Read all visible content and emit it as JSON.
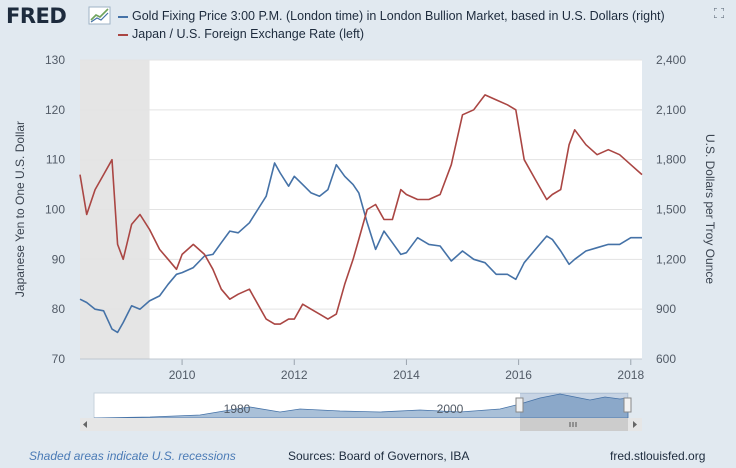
{
  "header": {
    "logo_text": "FRED",
    "logo_icon": "chart-trend-icon",
    "expand_icon": "expand-icon"
  },
  "colors": {
    "background": "#e1e9f0",
    "plot_background": "#ffffff",
    "recession_shade": "#e5e5e5",
    "gold_series": "#4572a7",
    "yen_series": "#aa4643",
    "text": "#1d2b3d",
    "link": "#4b7bb6"
  },
  "chart_data": {
    "type": "line",
    "x_axis": {
      "ticks": [
        2010,
        2012,
        2014,
        2016,
        2018
      ],
      "range": [
        2008.18,
        2018.2
      ]
    },
    "left_axis": {
      "label": "Japanese Yen to One U.S. Dollar",
      "range": [
        70,
        130
      ],
      "ticks": [
        70,
        80,
        90,
        100,
        110,
        120,
        130
      ]
    },
    "right_axis": {
      "label": "U.S. Dollars per Troy Ounce",
      "range": [
        600,
        2400
      ],
      "ticks": [
        "600",
        "900",
        "1,200",
        "1,500",
        "1,800",
        "2,100",
        "2,400"
      ]
    },
    "recession": [
      2008.18,
      2009.42
    ],
    "grid": "horizontal",
    "series": [
      {
        "name": "Gold Fixing Price 3:00 P.M. (London time) in London Bullion Market, based in U.S. Dollars (right)",
        "axis": "right",
        "x": [
          2008.18,
          2008.3,
          2008.45,
          2008.6,
          2008.75,
          2008.85,
          2008.95,
          2009.1,
          2009.25,
          2009.42,
          2009.6,
          2009.75,
          2009.9,
          2010.0,
          2010.2,
          2010.4,
          2010.55,
          2010.7,
          2010.85,
          2011.0,
          2011.2,
          2011.35,
          2011.5,
          2011.65,
          2011.75,
          2011.9,
          2012.0,
          2012.15,
          2012.3,
          2012.45,
          2012.6,
          2012.75,
          2012.9,
          2013.05,
          2013.15,
          2013.3,
          2013.45,
          2013.6,
          2013.75,
          2013.9,
          2014.0,
          2014.2,
          2014.4,
          2014.6,
          2014.8,
          2015.0,
          2015.2,
          2015.4,
          2015.6,
          2015.8,
          2015.95,
          2016.1,
          2016.3,
          2016.5,
          2016.6,
          2016.75,
          2016.9,
          2017.0,
          2017.2,
          2017.4,
          2017.6,
          2017.8,
          2018.0,
          2018.2
        ],
        "values": [
          960,
          940,
          900,
          890,
          780,
          760,
          820,
          920,
          900,
          950,
          980,
          1050,
          1110,
          1120,
          1150,
          1220,
          1230,
          1300,
          1370,
          1360,
          1420,
          1500,
          1580,
          1780,
          1720,
          1640,
          1700,
          1650,
          1600,
          1580,
          1620,
          1770,
          1700,
          1650,
          1600,
          1420,
          1260,
          1370,
          1300,
          1230,
          1240,
          1330,
          1290,
          1280,
          1190,
          1250,
          1200,
          1180,
          1110,
          1110,
          1080,
          1180,
          1260,
          1340,
          1320,
          1250,
          1170,
          1200,
          1250,
          1270,
          1290,
          1290,
          1330,
          1330
        ]
      },
      {
        "name": "Japan / U.S. Foreign Exchange Rate (left)",
        "axis": "left",
        "x": [
          2008.18,
          2008.3,
          2008.45,
          2008.6,
          2008.75,
          2008.85,
          2008.95,
          2009.1,
          2009.25,
          2009.42,
          2009.6,
          2009.75,
          2009.9,
          2010.0,
          2010.2,
          2010.4,
          2010.55,
          2010.7,
          2010.85,
          2011.0,
          2011.2,
          2011.35,
          2011.5,
          2011.65,
          2011.75,
          2011.9,
          2012.0,
          2012.15,
          2012.3,
          2012.45,
          2012.6,
          2012.75,
          2012.9,
          2013.05,
          2013.15,
          2013.3,
          2013.45,
          2013.6,
          2013.75,
          2013.9,
          2014.0,
          2014.2,
          2014.4,
          2014.6,
          2014.8,
          2015.0,
          2015.2,
          2015.4,
          2015.6,
          2015.8,
          2015.95,
          2016.1,
          2016.3,
          2016.5,
          2016.6,
          2016.75,
          2016.9,
          2017.0,
          2017.2,
          2017.4,
          2017.6,
          2017.8,
          2018.0,
          2018.2
        ],
        "values": [
          107,
          99,
          104,
          107,
          110,
          93,
          90,
          97,
          99,
          96,
          92,
          90,
          88,
          91,
          93,
          91,
          88,
          84,
          82,
          83,
          84,
          81,
          78,
          77,
          77,
          78,
          78,
          81,
          80,
          79,
          78,
          79,
          85,
          90,
          94,
          100,
          101,
          98,
          98,
          104,
          103,
          102,
          102,
          103,
          109,
          119,
          120,
          123,
          122,
          121,
          120,
          110,
          106,
          102,
          103,
          104,
          113,
          116,
          113,
          111,
          112,
          111,
          109,
          107
        ]
      }
    ],
    "navigator_labels": [
      "1980",
      "2000"
    ]
  },
  "footer": {
    "left": "Shaded areas indicate U.S. recessions",
    "middle": "Sources: Board of Governors, IBA",
    "right": "fred.stlouisfed.org"
  }
}
